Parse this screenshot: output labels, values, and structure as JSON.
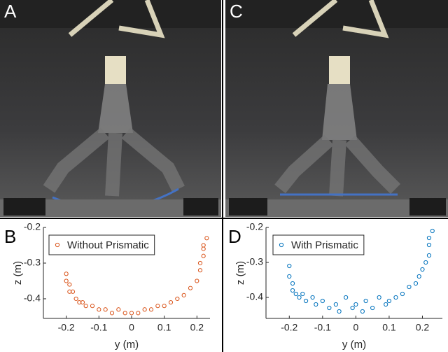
{
  "photos": [
    {
      "label": "A"
    },
    {
      "label": "C"
    }
  ],
  "chart_data": [
    {
      "type": "scatter",
      "panel_label": "B",
      "xlabel": "y (m)",
      "ylabel": "z (m)",
      "xlim": [
        -0.27,
        0.24
      ],
      "ylim": [
        -0.455,
        -0.2
      ],
      "xticks": [
        -0.2,
        -0.1,
        0,
        0.1,
        0.2
      ],
      "yticks": [
        -0.2,
        -0.3,
        -0.4
      ],
      "legend": "upper-center",
      "series": [
        {
          "name": "Without Prismatic",
          "color": "#d95319",
          "x": [
            -0.2,
            -0.2,
            -0.19,
            -0.19,
            -0.18,
            -0.17,
            -0.16,
            -0.15,
            -0.14,
            -0.12,
            -0.1,
            -0.08,
            -0.06,
            -0.04,
            -0.02,
            0,
            0.02,
            0.04,
            0.06,
            0.08,
            0.1,
            0.12,
            0.14,
            0.16,
            0.18,
            0.2,
            0.21,
            0.21,
            0.22,
            0.22,
            0.22,
            0.23
          ],
          "values": [
            -0.33,
            -0.35,
            -0.36,
            -0.38,
            -0.38,
            -0.4,
            -0.41,
            -0.41,
            -0.42,
            -0.42,
            -0.43,
            -0.43,
            -0.44,
            -0.43,
            -0.44,
            -0.44,
            -0.44,
            -0.43,
            -0.43,
            -0.42,
            -0.42,
            -0.41,
            -0.4,
            -0.39,
            -0.37,
            -0.35,
            -0.32,
            -0.3,
            -0.28,
            -0.26,
            -0.25,
            -0.23
          ]
        }
      ]
    },
    {
      "type": "scatter",
      "panel_label": "D",
      "xlabel": "y (m)",
      "ylabel": "z (m)",
      "xlim": [
        -0.27,
        0.26
      ],
      "ylim": [
        -0.46,
        -0.2
      ],
      "xticks": [
        -0.2,
        -0.1,
        0,
        0.1,
        0.2
      ],
      "yticks": [
        -0.2,
        -0.3,
        -0.4
      ],
      "legend": "upper-center",
      "series": [
        {
          "name": "With Prismatic",
          "color": "#0072bd",
          "x": [
            -0.2,
            -0.2,
            -0.19,
            -0.19,
            -0.18,
            -0.17,
            -0.16,
            -0.15,
            -0.13,
            -0.12,
            -0.1,
            -0.08,
            -0.06,
            -0.05,
            -0.03,
            -0.01,
            0,
            0.02,
            0.03,
            0.05,
            0.07,
            0.09,
            0.1,
            0.12,
            0.14,
            0.16,
            0.18,
            0.19,
            0.2,
            0.21,
            0.22,
            0.22,
            0.22,
            0.23
          ],
          "values": [
            -0.31,
            -0.34,
            -0.36,
            -0.38,
            -0.39,
            -0.4,
            -0.39,
            -0.41,
            -0.4,
            -0.42,
            -0.41,
            -0.43,
            -0.42,
            -0.44,
            -0.4,
            -0.43,
            -0.42,
            -0.44,
            -0.41,
            -0.43,
            -0.4,
            -0.42,
            -0.41,
            -0.4,
            -0.39,
            -0.37,
            -0.36,
            -0.34,
            -0.32,
            -0.3,
            -0.28,
            -0.25,
            -0.23,
            -0.21
          ]
        }
      ]
    }
  ]
}
